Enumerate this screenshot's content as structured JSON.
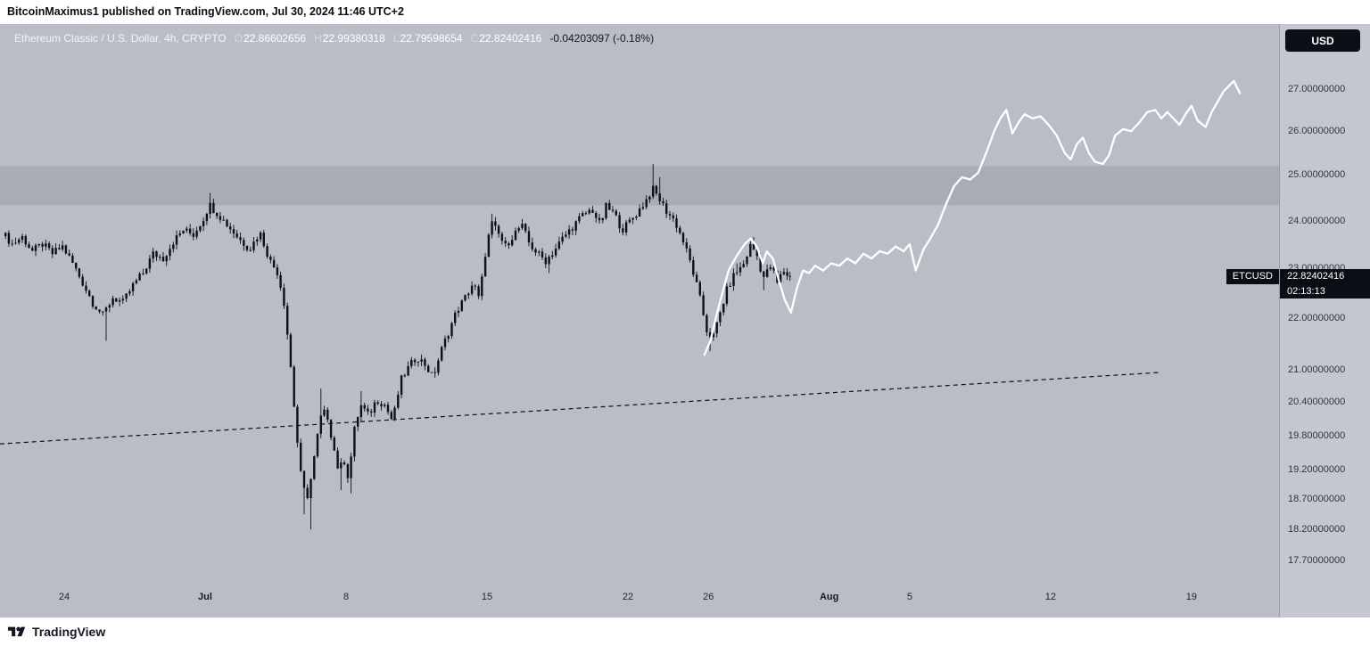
{
  "publish_bar": {
    "text": "BitcoinMaximus1 published on TradingView.com, Jul 30, 2024 11:46 UTC+2"
  },
  "chart_header": {
    "title": "Ethereum Classic / U.S. Dollar, 4h, CRYPTO",
    "open_label": "O",
    "open": "22.86602656",
    "high_label": "H",
    "high": "22.99380318",
    "low_label": "L",
    "low": "22.79598654",
    "close_label": "C",
    "close": "22.82402416",
    "change": "-0.04203097 (-0.18%)"
  },
  "price_scale": {
    "currency_button": "USD",
    "symbol_badge": "ETCUSD",
    "last_price": "22.82402416",
    "countdown": "02:13:13"
  },
  "footer": {
    "brand": "TradingView"
  },
  "chart_data": {
    "type": "candlestick+line",
    "symbol": "ETCUSD",
    "title": "Ethereum Classic / U.S. Dollar, 4h, CRYPTO",
    "timeframe": "4h",
    "price_scale_type": "log",
    "last_price": 22.82402416,
    "day0_date": "2024-06-21",
    "ylim": [
      17.45,
      27.6
    ],
    "x_axis": {
      "ticks": [
        {
          "day": 3,
          "label": "24",
          "bold": false
        },
        {
          "day": 10,
          "label": "Jul",
          "bold": true
        },
        {
          "day": 17,
          "label": "8",
          "bold": false
        },
        {
          "day": 24,
          "label": "15",
          "bold": false
        },
        {
          "day": 31,
          "label": "22",
          "bold": false
        },
        {
          "day": 35,
          "label": "26",
          "bold": false
        },
        {
          "day": 41,
          "label": "Aug",
          "bold": true
        },
        {
          "day": 45,
          "label": "5",
          "bold": false
        },
        {
          "day": 52,
          "label": "12",
          "bold": false
        },
        {
          "day": 59,
          "label": "19",
          "bold": false
        }
      ]
    },
    "y_axis": {
      "ticks": [
        {
          "price": 27,
          "label": "27.00000000"
        },
        {
          "price": 26,
          "label": "26.00000000"
        },
        {
          "price": 25,
          "label": "25.00000000"
        },
        {
          "price": 24,
          "label": "24.00000000"
        },
        {
          "price": 23,
          "label": "23.00000000"
        },
        {
          "price": 22,
          "label": "22.00000000"
        },
        {
          "price": 21,
          "label": "21.00000000"
        },
        {
          "price": 20.4,
          "label": "20.40000000"
        },
        {
          "price": 19.8,
          "label": "19.80000000"
        },
        {
          "price": 19.2,
          "label": "19.20000000"
        },
        {
          "price": 18.7,
          "label": "18.70000000"
        },
        {
          "price": 18.2,
          "label": "18.20000000"
        },
        {
          "price": 17.7,
          "label": "17.70000000"
        }
      ]
    },
    "resistance_band": {
      "top": 25.2,
      "bottom": 24.33
    },
    "trendline": {
      "from_day": -0.2,
      "from_price": 19.65,
      "to_day": 57.5,
      "to_price": 20.95,
      "style": "dashed"
    },
    "candles_resolution_hours": 4,
    "candle_path": [
      [
        0,
        23.75
      ],
      [
        0.5,
        23.5
      ],
      [
        1,
        23.65
      ],
      [
        1.5,
        23.35
      ],
      [
        2,
        23.5
      ],
      [
        2.5,
        23.3
      ],
      [
        3,
        23.45
      ],
      [
        3.5,
        23.1
      ],
      [
        4,
        22.7
      ],
      [
        4.5,
        22.3
      ],
      [
        5,
        22.05,
        21.55,
        null
      ],
      [
        5.5,
        22.4
      ],
      [
        6,
        22.3
      ],
      [
        6.5,
        22.65
      ],
      [
        7,
        22.9
      ],
      [
        7.5,
        23.3
      ],
      [
        8,
        23.2
      ],
      [
        8.5,
        23.55
      ],
      [
        9,
        23.8
      ],
      [
        9.5,
        23.7
      ],
      [
        10,
        24.05
      ],
      [
        10.3,
        24.35,
        null,
        24.6
      ],
      [
        10.8,
        24.1
      ],
      [
        11.3,
        23.85
      ],
      [
        11.8,
        23.6
      ],
      [
        12.3,
        23.4
      ],
      [
        12.8,
        23.75
      ],
      [
        13.3,
        23.15
      ],
      [
        13.7,
        22.9
      ],
      [
        14,
        22.3
      ],
      [
        14.3,
        21.2
      ],
      [
        14.6,
        19.9
      ],
      [
        14.9,
        18.9,
        18.45,
        null
      ],
      [
        15.2,
        18.75,
        18.2,
        null
      ],
      [
        15.5,
        19.4
      ],
      [
        15.8,
        20.1,
        null,
        20.65
      ],
      [
        16.1,
        20.25
      ],
      [
        16.4,
        19.7
      ],
      [
        16.7,
        19.2,
        18.85,
        null
      ],
      [
        17,
        19.35
      ],
      [
        17.2,
        19.05,
        18.8,
        null
      ],
      [
        17.5,
        19.9
      ],
      [
        17.8,
        20.35,
        null,
        20.6
      ],
      [
        18.2,
        20.15
      ],
      [
        18.6,
        20.45
      ],
      [
        19,
        20.35
      ],
      [
        19.4,
        20.05
      ],
      [
        19.8,
        20.8
      ],
      [
        20.2,
        21.05
      ],
      [
        20.6,
        21.25
      ],
      [
        21,
        21.1
      ],
      [
        21.4,
        20.85
      ],
      [
        21.8,
        21.35
      ],
      [
        22.2,
        21.75
      ],
      [
        22.6,
        22.15
      ],
      [
        23,
        22.4
      ],
      [
        23.4,
        22.7
      ],
      [
        23.7,
        22.35
      ],
      [
        24,
        23.3
      ],
      [
        24.3,
        23.95,
        null,
        24.15
      ],
      [
        24.6,
        23.75
      ],
      [
        25,
        23.45
      ],
      [
        25.4,
        23.7
      ],
      [
        25.8,
        23.9
      ],
      [
        26.2,
        23.5
      ],
      [
        26.6,
        23.3
      ],
      [
        27,
        23.15,
        22.9,
        null
      ],
      [
        27.4,
        23.35
      ],
      [
        27.8,
        23.6
      ],
      [
        28.3,
        23.85
      ],
      [
        28.8,
        24.1
      ],
      [
        29.3,
        24.25
      ],
      [
        29.7,
        23.9
      ],
      [
        30,
        24.3,
        null,
        24.45
      ],
      [
        30.4,
        24.15
      ],
      [
        30.8,
        23.8
      ],
      [
        31.2,
        24
      ],
      [
        31.6,
        24.2
      ],
      [
        32,
        24.45
      ],
      [
        32.3,
        24.7,
        null,
        25.25
      ],
      [
        32.6,
        24.5,
        null,
        24.95
      ],
      [
        33,
        24.2
      ],
      [
        33.4,
        24
      ],
      [
        33.8,
        23.6
      ],
      [
        34.2,
        23.1
      ],
      [
        34.6,
        22.5
      ],
      [
        35,
        21.75,
        21.35,
        null
      ],
      [
        35.3,
        21.6
      ],
      [
        35.6,
        22
      ],
      [
        36,
        22.55
      ],
      [
        36.4,
        22.9,
        null,
        23.1
      ],
      [
        36.8,
        23.05
      ],
      [
        37.2,
        23.5,
        null,
        23.65
      ],
      [
        37.5,
        23.25
      ],
      [
        37.8,
        22.8,
        22.55,
        null
      ],
      [
        38.2,
        23.05
      ],
      [
        38.5,
        22.7
      ],
      [
        38.8,
        22.95
      ],
      [
        39.1,
        22.82
      ]
    ],
    "white_line": [
      [
        34.8,
        21.28
      ],
      [
        35.1,
        21.55
      ],
      [
        35.4,
        22.05
      ],
      [
        35.7,
        22.5
      ],
      [
        36,
        22.95
      ],
      [
        36.4,
        23.25
      ],
      [
        36.8,
        23.5
      ],
      [
        37.1,
        23.62
      ],
      [
        37.4,
        23.45
      ],
      [
        37.7,
        23.1
      ],
      [
        37.9,
        23.35
      ],
      [
        38.2,
        23.2
      ],
      [
        38.5,
        22.75
      ],
      [
        38.8,
        22.35
      ],
      [
        39.1,
        22.1
      ],
      [
        39.4,
        22.6
      ],
      [
        39.7,
        22.95
      ],
      [
        40,
        22.9
      ],
      [
        40.3,
        23.05
      ],
      [
        40.7,
        22.95
      ],
      [
        41.1,
        23.1
      ],
      [
        41.5,
        23.05
      ],
      [
        41.9,
        23.2
      ],
      [
        42.3,
        23.1
      ],
      [
        42.7,
        23.3
      ],
      [
        43.1,
        23.2
      ],
      [
        43.5,
        23.35
      ],
      [
        43.9,
        23.3
      ],
      [
        44.3,
        23.45
      ],
      [
        44.7,
        23.35
      ],
      [
        45,
        23.5
      ],
      [
        45.3,
        22.95
      ],
      [
        45.7,
        23.4
      ],
      [
        46,
        23.6
      ],
      [
        46.4,
        23.9
      ],
      [
        46.8,
        24.35
      ],
      [
        47.2,
        24.75
      ],
      [
        47.6,
        24.95
      ],
      [
        48,
        24.9
      ],
      [
        48.4,
        25.05
      ],
      [
        48.8,
        25.5
      ],
      [
        49.2,
        26
      ],
      [
        49.5,
        26.3
      ],
      [
        49.8,
        26.5
      ],
      [
        50.1,
        25.95
      ],
      [
        50.4,
        26.2
      ],
      [
        50.7,
        26.4
      ],
      [
        51.1,
        26.3
      ],
      [
        51.5,
        26.35
      ],
      [
        51.9,
        26.15
      ],
      [
        52.3,
        25.9
      ],
      [
        52.7,
        25.5
      ],
      [
        53,
        25.35
      ],
      [
        53.3,
        25.7
      ],
      [
        53.6,
        25.85
      ],
      [
        53.9,
        25.5
      ],
      [
        54.2,
        25.3
      ],
      [
        54.6,
        25.25
      ],
      [
        54.9,
        25.45
      ],
      [
        55.2,
        25.9
      ],
      [
        55.6,
        26.05
      ],
      [
        56,
        26
      ],
      [
        56.4,
        26.2
      ],
      [
        56.8,
        26.45
      ],
      [
        57.2,
        26.5
      ],
      [
        57.5,
        26.3
      ],
      [
        57.8,
        26.45
      ],
      [
        58.1,
        26.3
      ],
      [
        58.4,
        26.15
      ],
      [
        58.7,
        26.4
      ],
      [
        59,
        26.6
      ],
      [
        59.3,
        26.25
      ],
      [
        59.7,
        26.1
      ],
      [
        60,
        26.45
      ],
      [
        60.3,
        26.7
      ],
      [
        60.6,
        26.95
      ],
      [
        60.9,
        27.1
      ],
      [
        61.1,
        27.2
      ],
      [
        61.4,
        26.9
      ]
    ],
    "colors": {
      "background": "#b9bdc6",
      "panel": "#c4c7cf",
      "band": "#a8acb6",
      "candle": "#0d1016",
      "line": "#ffffff",
      "badge": "#0b0e14"
    }
  }
}
